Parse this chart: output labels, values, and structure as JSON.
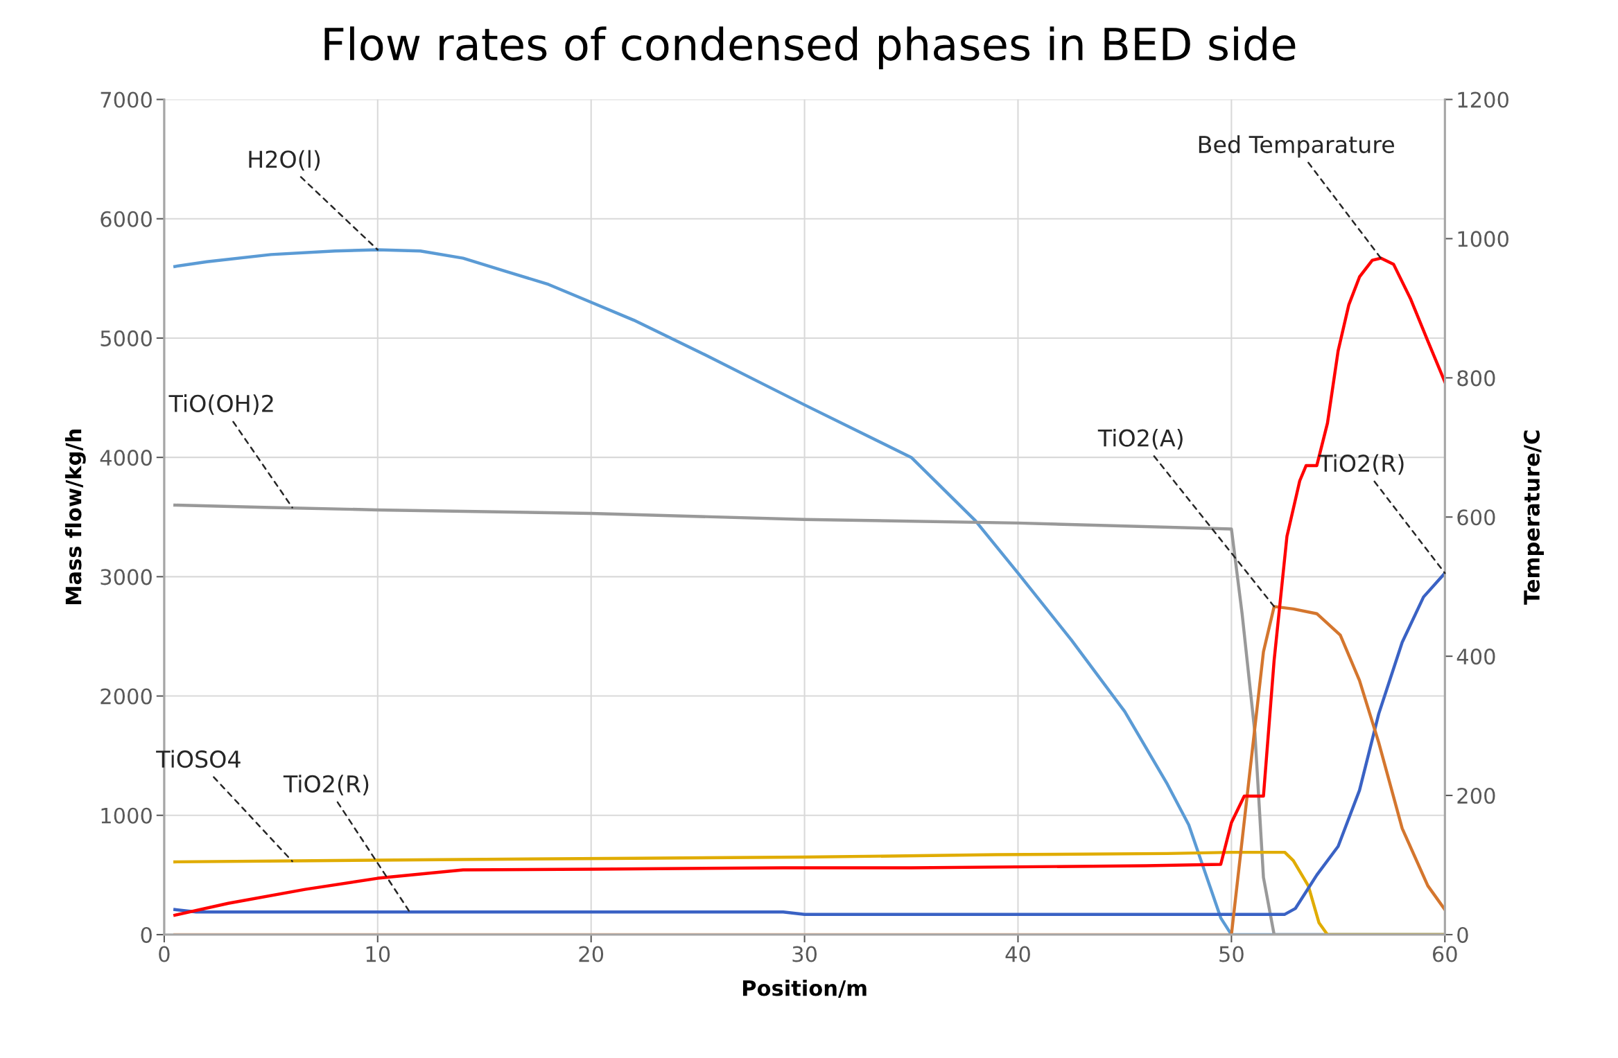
{
  "chart_data": {
    "type": "line",
    "title": "Flow rates of condensed phases in BED side",
    "xlabel": "Position/m",
    "ylabel": "Mass flow/kg/h",
    "y2label": "Temperature/C",
    "xlim": [
      0,
      60
    ],
    "xticks": [
      0,
      10,
      20,
      30,
      40,
      50,
      60
    ],
    "ylim": [
      0,
      7000
    ],
    "yticks": [
      0,
      1000,
      2000,
      3000,
      4000,
      5000,
      6000,
      7000
    ],
    "y2lim": [
      0,
      1200
    ],
    "y2ticks": [
      0,
      200,
      400,
      600,
      800,
      1000,
      1200
    ],
    "grid": true,
    "marker": "none",
    "line_style": "solid",
    "series": [
      {
        "color": "#f4b183",
        "x": [
          0.5,
          50
        ],
        "values": [
          0,
          0
        ]
      },
      {
        "color": "#5b9bd5",
        "x": [
          0.5,
          2,
          5,
          8,
          10,
          12,
          14,
          16,
          18,
          20,
          22,
          25,
          28,
          30,
          35,
          38,
          40,
          42.5,
          45,
          47,
          48,
          49,
          49.5,
          50,
          60
        ],
        "values": [
          5600,
          5640,
          5700,
          5730,
          5740,
          5730,
          5670,
          5560,
          5450,
          5300,
          5150,
          4890,
          4620,
          4440,
          4000,
          3470,
          3030,
          2470,
          1870,
          1260,
          920,
          400,
          140,
          0,
          0
        ]
      },
      {
        "color": "#999999",
        "x": [
          0.5,
          5,
          10,
          20,
          30,
          40,
          50,
          50.5,
          51.1,
          51.5,
          52,
          60
        ],
        "values": [
          3600,
          3580,
          3560,
          3530,
          3480,
          3450,
          3400,
          2690,
          1690,
          480,
          0,
          0
        ]
      },
      {
        "color": "#e0ac00",
        "x": [
          0.5,
          7,
          14,
          22,
          30,
          39,
          47,
          50,
          52.5,
          52.9,
          53.6,
          54.1,
          54.5,
          60
        ],
        "values": [
          610,
          620,
          630,
          640,
          650,
          670,
          680,
          690,
          690,
          620,
          410,
          100,
          0,
          0
        ]
      },
      {
        "color": "#3a62c4",
        "x": [
          0.5,
          1.5,
          29,
          30,
          52.5,
          53,
          54,
          55,
          56,
          56.9,
          58,
          59,
          60
        ],
        "values": [
          210,
          190,
          190,
          170,
          170,
          220,
          500,
          740,
          1210,
          1850,
          2450,
          2830,
          3030
        ]
      },
      {
        "color": "#d4762e",
        "x": [
          50,
          51.5,
          52,
          52.9,
          54,
          55.1,
          56,
          56.9,
          58,
          59.2,
          60
        ],
        "values": [
          0,
          2370,
          2750,
          2730,
          2690,
          2510,
          2130,
          1610,
          890,
          410,
          210
        ]
      },
      {
        "color": "#ff0000",
        "axis": "y2",
        "x": [
          0.5,
          3,
          6.6,
          10,
          14,
          20,
          29,
          35,
          46,
          49.5,
          50,
          50.6,
          51.5,
          52,
          52.6,
          53.2,
          53.5,
          54,
          54.5,
          55,
          55.5,
          56,
          56.6,
          57,
          57.6,
          58.4,
          59.2,
          60
        ],
        "values": [
          28,
          45,
          65,
          81,
          93,
          94,
          96,
          96,
          99,
          101,
          161,
          199,
          199,
          394,
          572,
          652,
          674,
          674,
          735,
          839,
          905,
          945,
          969,
          972,
          963,
          913,
          853,
          794
        ]
      }
    ],
    "annotations": [
      {
        "text": "H2O(l)",
        "x": 10,
        "y": 5740
      },
      {
        "text": "TiO(OH)2",
        "x": 6,
        "y": 3580
      },
      {
        "text": "TiOSO4",
        "x": 6,
        "y": 615
      },
      {
        "text": "TiO2(R)",
        "x": 11.5,
        "y": 190
      },
      {
        "text": "TiO2(A)",
        "x": 52,
        "y": 2750
      },
      {
        "text": "TiO2(R)",
        "x": 60,
        "y": 3030
      },
      {
        "text": "Bed Temparature",
        "x": 57,
        "y": 5670
      }
    ]
  }
}
